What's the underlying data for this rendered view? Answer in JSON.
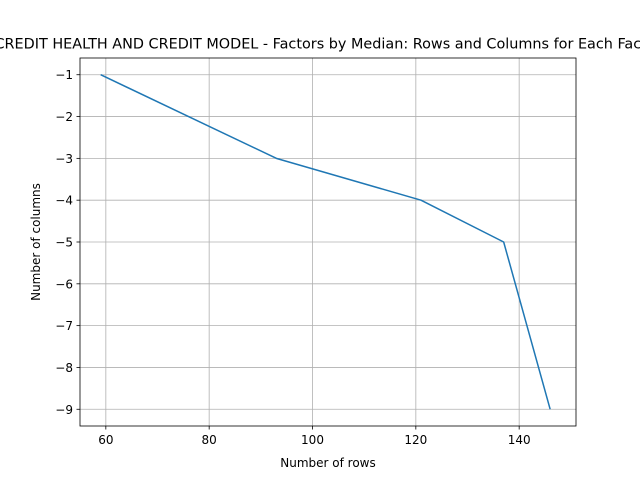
{
  "chart_data": {
    "type": "line",
    "title": "CREDIT HEALTH AND CREDIT MODEL - Factors by Median: Rows and Columns for Each Factor",
    "xlabel": "Number of rows",
    "ylabel": "Number of columns",
    "grid": true,
    "xlim": [
      55,
      151
    ],
    "ylim": [
      -9.4,
      -0.6
    ],
    "xticks": [
      60,
      80,
      100,
      120,
      140
    ],
    "yticks": [
      -1,
      -2,
      -3,
      -4,
      -5,
      -6,
      -7,
      -8,
      -9
    ],
    "series": [
      {
        "color": "#1f77b4",
        "x": [
          59,
          93,
          121,
          137,
          146
        ],
        "y": [
          -1,
          -3,
          -4,
          -5,
          -9
        ]
      }
    ]
  }
}
